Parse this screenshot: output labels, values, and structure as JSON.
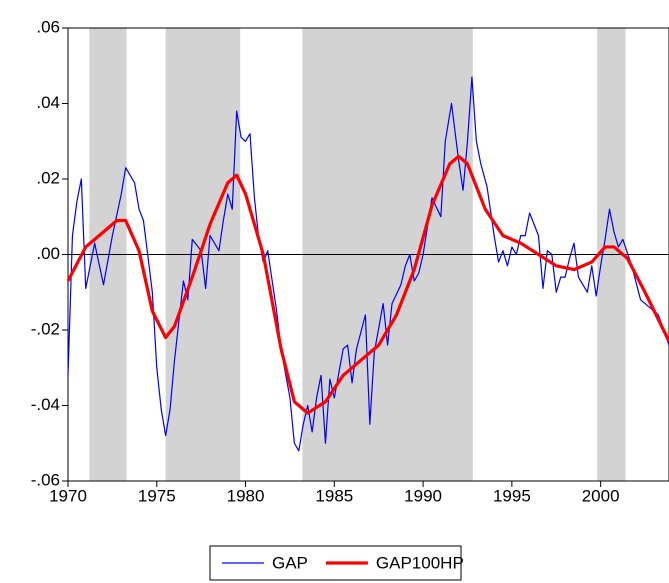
{
  "chart_data": {
    "type": "line",
    "x_ranges_shaded": [
      [
        1971.2,
        1973.3
      ],
      [
        1975.5,
        1979.7
      ],
      [
        1983.2,
        1992.8
      ],
      [
        1999.8,
        2001.4
      ]
    ],
    "shade_color": "#d3d3d3",
    "zero_line": true,
    "xlim": [
      1970,
      2003.85
    ],
    "xticks": [
      1970,
      1975,
      1980,
      1985,
      1990,
      1995,
      2000
    ],
    "ylim": [
      -0.06,
      0.06
    ],
    "yticks": [
      {
        "value": -0.06,
        "label": "-.06"
      },
      {
        "value": -0.04,
        "label": "-.04"
      },
      {
        "value": -0.02,
        "label": "-.02"
      },
      {
        "value": 0,
        "label": ".00"
      },
      {
        "value": 0.02,
        "label": ".02"
      },
      {
        "value": 0.04,
        "label": ".04"
      },
      {
        "value": 0.06,
        "label": ".06"
      }
    ],
    "legend": "bottom",
    "series": [
      {
        "name": "GAP",
        "color": "#0000ff",
        "width": 1.2,
        "x": [
          1970,
          1970.25,
          1970.5,
          1970.75,
          1971,
          1971.5,
          1972,
          1972.5,
          1973,
          1973.25,
          1973.75,
          1974,
          1974.25,
          1974.75,
          1975,
          1975.25,
          1975.5,
          1975.75,
          1976,
          1976.5,
          1976.75,
          1977,
          1977.5,
          1977.75,
          1978,
          1978.5,
          1978.75,
          1979,
          1979.25,
          1979.5,
          1979.75,
          1980,
          1980.25,
          1980.5,
          1980.75,
          1981,
          1981.25,
          1981.75,
          1982,
          1982.5,
          1982.75,
          1983,
          1983.25,
          1983.5,
          1983.75,
          1984,
          1984.25,
          1984.5,
          1984.75,
          1985,
          1985.5,
          1985.75,
          1986,
          1986.25,
          1986.75,
          1987,
          1987.25,
          1987.75,
          1988,
          1988.25,
          1988.75,
          1989,
          1989.25,
          1989.5,
          1989.75,
          1990,
          1990.5,
          1991,
          1991.25,
          1991.6,
          1992,
          1992.25,
          1992.5,
          1992.75,
          1993,
          1993.25,
          1993.6,
          1994,
          1994.25,
          1994.5,
          1994.75,
          1995,
          1995.25,
          1995.5,
          1995.75,
          1996,
          1996.5,
          1996.75,
          1997,
          1997.25,
          1997.5,
          1997.75,
          1998,
          1998.25,
          1998.5,
          1998.75,
          1999,
          1999.25,
          1999.5,
          1999.75,
          2000,
          2000.25,
          2000.5,
          2000.75,
          2001,
          2001.25,
          2001.75,
          2002.25,
          2002.75,
          2003.25,
          2003.85
        ],
        "values": [
          -0.032,
          0.005,
          0.014,
          0.02,
          -0.009,
          0.003,
          -0.008,
          0.005,
          0.016,
          0.023,
          0.019,
          0.012,
          0.009,
          -0.01,
          -0.03,
          -0.041,
          -0.048,
          -0.041,
          -0.028,
          -0.007,
          -0.012,
          0.004,
          0.001,
          -0.009,
          0.005,
          0.001,
          0.009,
          0.016,
          0.012,
          0.038,
          0.031,
          0.03,
          0.032,
          0.015,
          0.004,
          -0.002,
          0.001,
          -0.015,
          -0.025,
          -0.038,
          -0.05,
          -0.052,
          -0.045,
          -0.04,
          -0.047,
          -0.038,
          -0.032,
          -0.05,
          -0.033,
          -0.038,
          -0.025,
          -0.024,
          -0.034,
          -0.025,
          -0.016,
          -0.045,
          -0.026,
          -0.013,
          -0.024,
          -0.013,
          -0.008,
          -0.003,
          0.0,
          -0.007,
          -0.005,
          0.0,
          0.015,
          0.01,
          0.03,
          0.04,
          0.025,
          0.017,
          0.03,
          0.047,
          0.03,
          0.024,
          0.018,
          0.005,
          -0.002,
          0.001,
          -0.003,
          0.002,
          0.0,
          0.005,
          0.005,
          0.011,
          0.005,
          -0.009,
          0.001,
          0.0,
          -0.01,
          -0.006,
          -0.006,
          -0.001,
          0.003,
          -0.006,
          -0.008,
          -0.01,
          -0.003,
          -0.011,
          -0.003,
          0.004,
          0.012,
          0.006,
          0.002,
          0.004,
          -0.003,
          -0.012,
          -0.014,
          -0.016,
          -0.024
        ]
      },
      {
        "name": "GAP100HP",
        "color": "#ff0000",
        "width": 3.2,
        "x": [
          1970,
          1971,
          1972,
          1972.75,
          1973.25,
          1974,
          1974.75,
          1975.5,
          1976,
          1977,
          1978,
          1979,
          1979.5,
          1980,
          1981,
          1982,
          1982.75,
          1983.5,
          1984.5,
          1985.5,
          1986.5,
          1987.5,
          1988.5,
          1989.5,
          1990.5,
          1991.5,
          1992,
          1992.5,
          1993.5,
          1994.5,
          1995.5,
          1996.5,
          1997.5,
          1998.5,
          1999.5,
          2000.25,
          2000.75,
          2001.5,
          2002.5,
          2003.85
        ],
        "values": [
          -0.007,
          0.002,
          0.006,
          0.009,
          0.009,
          0.001,
          -0.015,
          -0.022,
          -0.019,
          -0.006,
          0.008,
          0.019,
          0.021,
          0.016,
          0.0,
          -0.025,
          -0.039,
          -0.042,
          -0.039,
          -0.032,
          -0.028,
          -0.024,
          -0.016,
          -0.004,
          0.013,
          0.024,
          0.026,
          0.024,
          0.012,
          0.005,
          0.003,
          0.0,
          -0.003,
          -0.004,
          -0.002,
          0.002,
          0.002,
          -0.001,
          -0.01,
          -0.023
        ]
      }
    ]
  }
}
